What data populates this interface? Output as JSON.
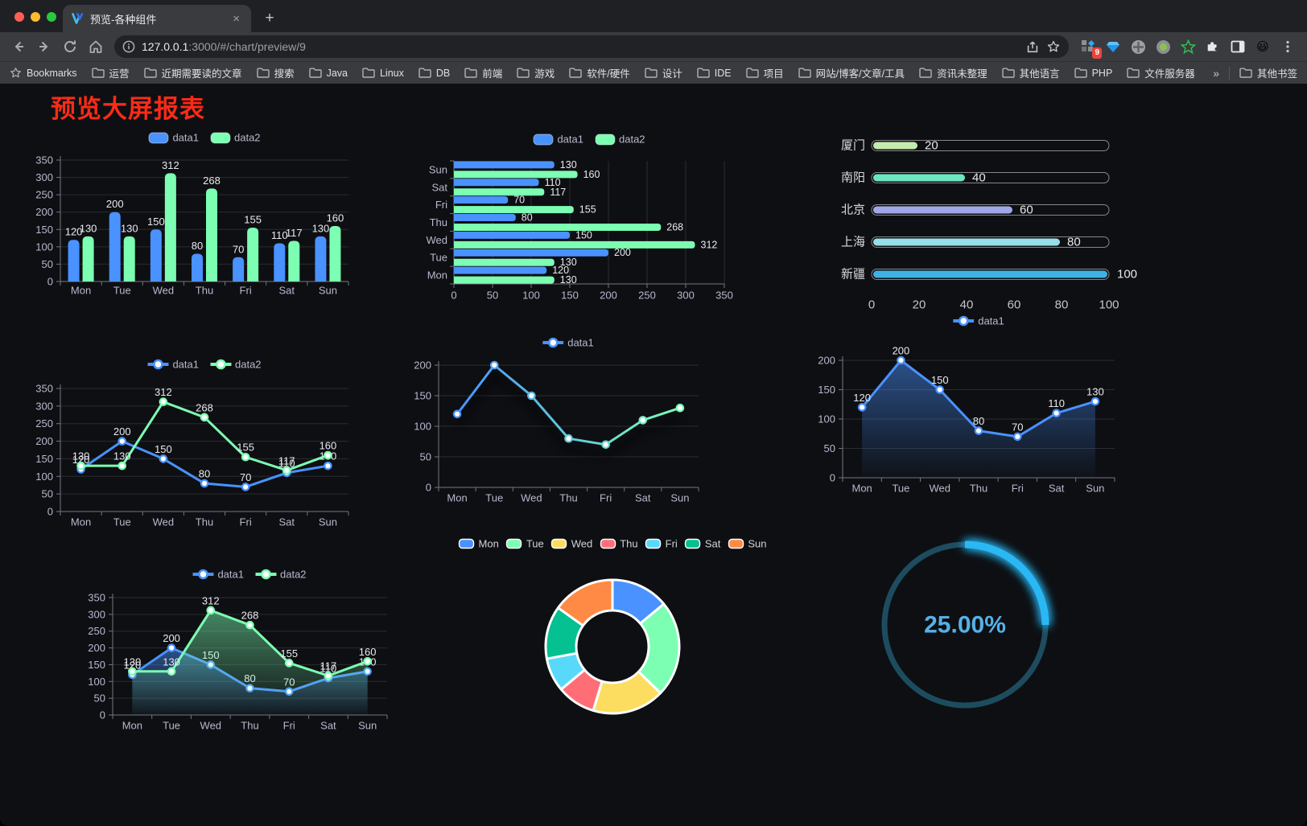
{
  "browser": {
    "tab": {
      "title": "预览-各种组件",
      "close_label": "×",
      "new_tab_label": "+"
    },
    "url": {
      "host": "127.0.0.1",
      "rest": ":3000/#/chart/preview/9"
    },
    "bookmarks_label": "Bookmarks",
    "bookmarks": [
      "运营",
      "近期需要读的文章",
      "搜索",
      "Java",
      "Linux",
      "DB",
      "前端",
      "游戏",
      "软件/硬件",
      "设计",
      "IDE",
      "项目",
      "网站/博客/文章/工具",
      "资讯未整理",
      "其他语言",
      "PHP",
      "文件服务器"
    ],
    "bookmarks_overflow": "»",
    "other_bookmarks": "其他书签",
    "extension_badge": "9"
  },
  "page": {
    "title": "预览大屏报表",
    "title_color": "#fa2b16"
  },
  "chart_data": [
    {
      "id": "bar-vertical",
      "type": "bar",
      "categories": [
        "Mon",
        "Tue",
        "Wed",
        "Thu",
        "Fri",
        "Sat",
        "Sun"
      ],
      "series": [
        {
          "name": "data1",
          "color": "#4992ff",
          "values": [
            120,
            200,
            150,
            80,
            70,
            110,
            130
          ]
        },
        {
          "name": "data2",
          "color": "#7cffb2",
          "values": [
            130,
            130,
            312,
            268,
            155,
            117,
            160
          ]
        }
      ],
      "ylim": [
        0,
        350
      ],
      "ytick_step": 50,
      "value_labels": true,
      "legend_position": "top"
    },
    {
      "id": "bar-horizontal",
      "type": "bar-horizontal",
      "categories": [
        "Mon",
        "Tue",
        "Wed",
        "Thu",
        "Fri",
        "Sat",
        "Sun"
      ],
      "series": [
        {
          "name": "data1",
          "color": "#4992ff",
          "values": [
            120,
            200,
            150,
            80,
            70,
            110,
            130
          ]
        },
        {
          "name": "data2",
          "color": "#7cffb2",
          "values": [
            130,
            130,
            312,
            268,
            155,
            117,
            160
          ]
        }
      ],
      "xlim": [
        0,
        350
      ],
      "xtick_step": 50,
      "value_labels": true,
      "legend_position": "top"
    },
    {
      "id": "progress-bars",
      "type": "progress",
      "max": 100,
      "axis_ticks": [
        0,
        20,
        40,
        60,
        80,
        100
      ],
      "items": [
        {
          "label": "厦门",
          "value": 20,
          "color": "#c4ebad"
        },
        {
          "label": "南阳",
          "value": 40,
          "color": "#6be6c1"
        },
        {
          "label": "北京",
          "value": 60,
          "color": "#a0a7e6"
        },
        {
          "label": "上海",
          "value": 80,
          "color": "#96dee8"
        },
        {
          "label": "新疆",
          "value": 100,
          "color": "#3fb1e3"
        }
      ]
    },
    {
      "id": "line-basic",
      "type": "line",
      "categories": [
        "Mon",
        "Tue",
        "Wed",
        "Thu",
        "Fri",
        "Sat",
        "Sun"
      ],
      "series": [
        {
          "name": "data1",
          "color": "#4992ff",
          "values": [
            120,
            200,
            150,
            80,
            70,
            110,
            130
          ]
        },
        {
          "name": "data2",
          "color": "#7cffb2",
          "values": [
            130,
            130,
            312,
            268,
            155,
            117,
            160
          ]
        }
      ],
      "ylim": [
        0,
        350
      ],
      "ytick_step": 50,
      "value_labels": true,
      "legend_position": "top"
    },
    {
      "id": "line-gradient",
      "type": "line",
      "categories": [
        "Mon",
        "Tue",
        "Wed",
        "Thu",
        "Fri",
        "Sat",
        "Sun"
      ],
      "series": [
        {
          "name": "data1",
          "gradient": [
            "#4992ff",
            "#7cffb2"
          ],
          "shadow": true,
          "values": [
            120,
            200,
            150,
            80,
            70,
            110,
            130
          ]
        }
      ],
      "ylim": [
        0,
        200
      ],
      "ytick_step": 50,
      "value_labels": false,
      "legend_position": "top"
    },
    {
      "id": "line-area",
      "type": "line",
      "categories": [
        "Mon",
        "Tue",
        "Wed",
        "Thu",
        "Fri",
        "Sat",
        "Sun"
      ],
      "series": [
        {
          "name": "data1",
          "color": "#4992ff",
          "area": true,
          "values": [
            120,
            200,
            150,
            80,
            70,
            110,
            130
          ]
        }
      ],
      "ylim": [
        0,
        200
      ],
      "ytick_step": 50,
      "value_labels": true,
      "legend_position": "top"
    },
    {
      "id": "line-area-double",
      "type": "line",
      "categories": [
        "Mon",
        "Tue",
        "Wed",
        "Thu",
        "Fri",
        "Sat",
        "Sun"
      ],
      "series": [
        {
          "name": "data1",
          "color": "#4992ff",
          "area": true,
          "values": [
            120,
            200,
            150,
            80,
            70,
            110,
            130
          ]
        },
        {
          "name": "data2",
          "color": "#7cffb2",
          "area": true,
          "values": [
            130,
            130,
            312,
            268,
            155,
            117,
            160
          ]
        }
      ],
      "ylim": [
        0,
        350
      ],
      "ytick_step": 50,
      "value_labels": true,
      "legend_position": "top"
    },
    {
      "id": "donut",
      "type": "pie",
      "inner_radius_pct": 54,
      "slices": [
        {
          "name": "Mon",
          "value": 120,
          "color": "#4992ff"
        },
        {
          "name": "Tue",
          "value": 200,
          "color": "#7cffb2"
        },
        {
          "name": "Wed",
          "value": 150,
          "color": "#fddd60"
        },
        {
          "name": "Thu",
          "value": 80,
          "color": "#ff6e76"
        },
        {
          "name": "Fri",
          "value": 70,
          "color": "#58d9f9"
        },
        {
          "name": "Sat",
          "value": 110,
          "color": "#05c091"
        },
        {
          "name": "Sun",
          "value": 130,
          "color": "#ff8a45"
        }
      ],
      "legend_position": "top"
    },
    {
      "id": "gauge",
      "type": "gauge",
      "value": 25,
      "display": "25.00%",
      "color": "#2ab8f5",
      "track_color": "#1d4c5f",
      "text_color": "#55b1e8"
    }
  ]
}
